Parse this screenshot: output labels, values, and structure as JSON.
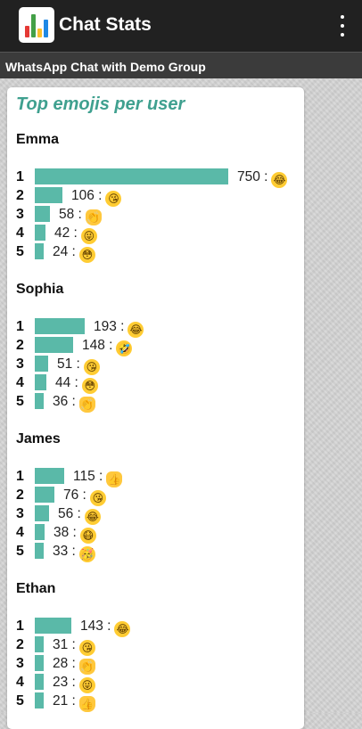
{
  "appbar": {
    "title": "Chat Stats"
  },
  "subbar": {
    "title": "WhatsApp Chat with Demo Group"
  },
  "card": {
    "title": "Top emojis per user",
    "bar_color": "#5ab9a8",
    "users": [
      {
        "name": "Emma",
        "max": 750,
        "entries": [
          {
            "rank": "1",
            "count": 750,
            "label": "750 :",
            "emoji": "tears-of-joy-icon",
            "glyph": "😂"
          },
          {
            "rank": "2",
            "count": 106,
            "label": "106 :",
            "emoji": "kissing-heart-icon",
            "glyph": "😘"
          },
          {
            "rank": "3",
            "count": 58,
            "label": "58 :",
            "emoji": "clapping-hands-icon",
            "glyph": "👏"
          },
          {
            "rank": "4",
            "count": 42,
            "label": "42 :",
            "emoji": "winking-tongue-icon",
            "glyph": "😜"
          },
          {
            "rank": "5",
            "count": 24,
            "label": "24 :",
            "emoji": "flushed-face-icon",
            "glyph": "😳"
          }
        ]
      },
      {
        "name": "Sophia",
        "max": 750,
        "entries": [
          {
            "rank": "1",
            "count": 193,
            "label": "193 :",
            "emoji": "tears-of-joy-icon",
            "glyph": "😂"
          },
          {
            "rank": "2",
            "count": 148,
            "label": "148 :",
            "emoji": "rolling-laughing-icon",
            "glyph": "🤣"
          },
          {
            "rank": "3",
            "count": 51,
            "label": "51 :",
            "emoji": "kissing-heart-icon",
            "glyph": "😘"
          },
          {
            "rank": "4",
            "count": 44,
            "label": "44 :",
            "emoji": "flushed-face-icon",
            "glyph": "😳"
          },
          {
            "rank": "5",
            "count": 36,
            "label": "36 :",
            "emoji": "clapping-hands-icon",
            "glyph": "👏"
          }
        ]
      },
      {
        "name": "James",
        "max": 750,
        "entries": [
          {
            "rank": "1",
            "count": 115,
            "label": "115 :",
            "emoji": "thumbs-up-icon",
            "glyph": "👍"
          },
          {
            "rank": "2",
            "count": 76,
            "label": "76 :",
            "emoji": "kissing-heart-icon",
            "glyph": "😘"
          },
          {
            "rank": "3",
            "count": 56,
            "label": "56 :",
            "emoji": "tears-of-joy-icon",
            "glyph": "😂"
          },
          {
            "rank": "4",
            "count": 38,
            "label": "38 :",
            "emoji": "medical-mask-icon",
            "glyph": "😷"
          },
          {
            "rank": "5",
            "count": 33,
            "label": "33 :",
            "emoji": "partying-face-icon",
            "glyph": "🥳"
          }
        ]
      },
      {
        "name": "Ethan",
        "max": 750,
        "entries": [
          {
            "rank": "1",
            "count": 143,
            "label": "143 :",
            "emoji": "tears-of-joy-icon",
            "glyph": "😂"
          },
          {
            "rank": "2",
            "count": 31,
            "label": "31 :",
            "emoji": "kissing-heart-icon",
            "glyph": "😘"
          },
          {
            "rank": "3",
            "count": 28,
            "label": "28 :",
            "emoji": "clapping-hands-icon",
            "glyph": "👏"
          },
          {
            "rank": "4",
            "count": 23,
            "label": "23 :",
            "emoji": "winking-tongue-icon",
            "glyph": "😜"
          },
          {
            "rank": "5",
            "count": 21,
            "label": "21 :",
            "emoji": "thumbs-up-icon",
            "glyph": "👍"
          }
        ]
      }
    ]
  }
}
